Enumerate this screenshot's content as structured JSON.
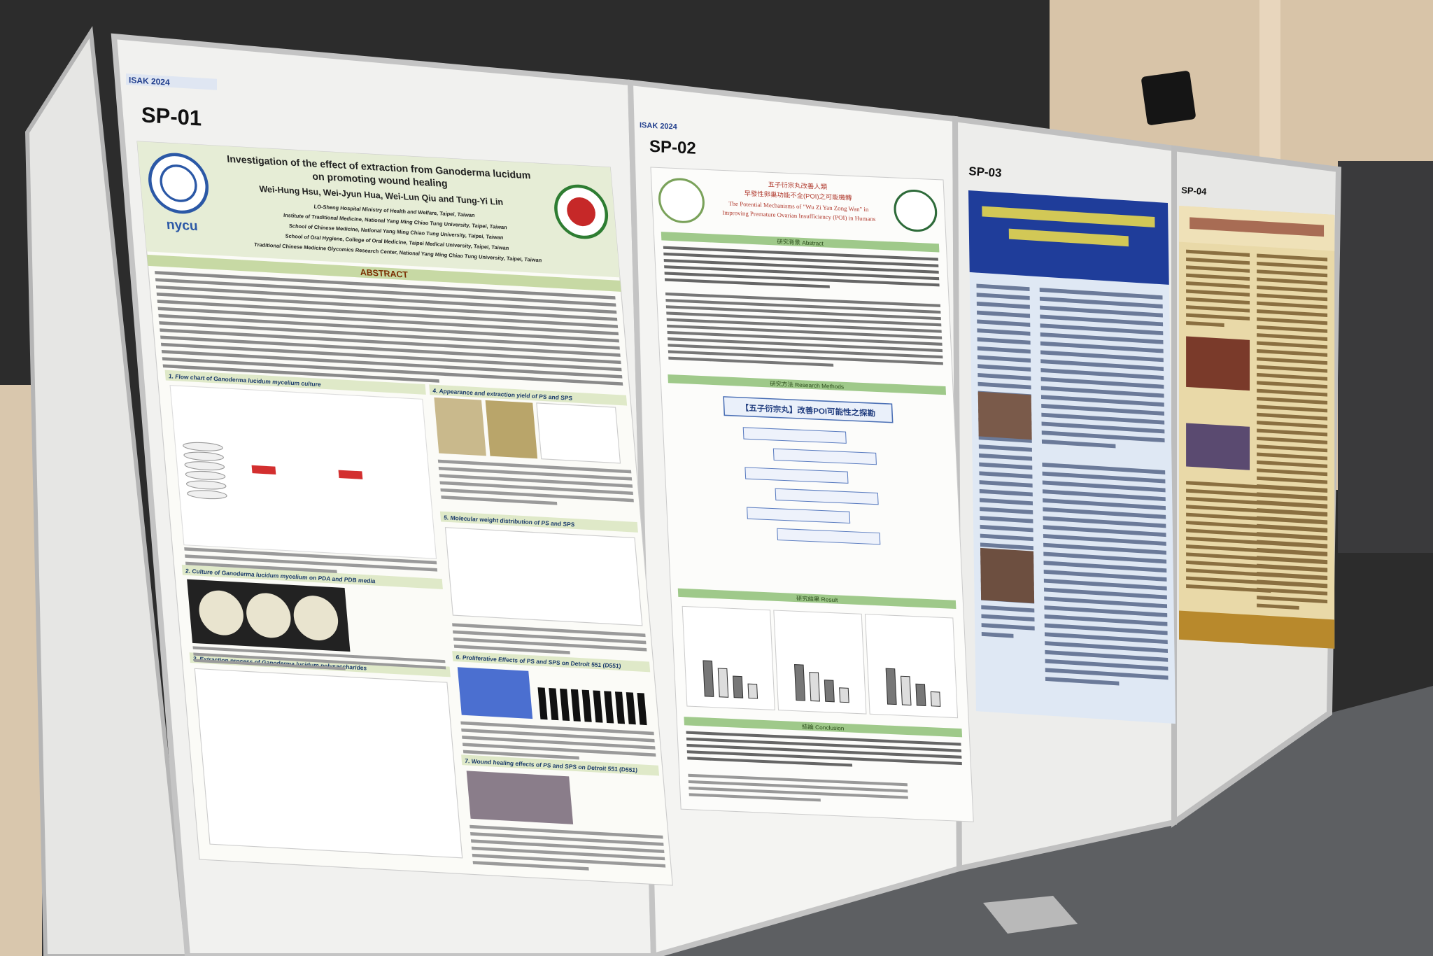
{
  "booths": [
    {
      "label": "SP-01",
      "header": "ISAK 2024",
      "poster": {
        "logo": "nycu",
        "title_lines": [
          "Investigation of the effect of extraction from Ganoderma lucidum",
          "on promoting wound healing"
        ],
        "authors": "Wei-Hung Hsu, Wei-Jyun Hua, Wei-Lun Qiu and Tung-Yi Lin",
        "affiliations": [
          "LO-Sheng Hospital Ministry of Health and Welfare, Taipei, Taiwan",
          "Institute of Traditional Medicine, National Yang Ming Chiao Tung University, Taipei, Taiwan",
          "School of Chinese Medicine, National Yang Ming Chiao Tung University, Taipei, Taiwan",
          "School of Oral Hygiene, College of Oral Medicine, Taipei Medical University, Taipei, Taiwan",
          "Traditional Chinese Medicine Glycomics Research Center, National Yang Ming Chiao Tung University, Taipei, Taiwan"
        ],
        "abstract_heading": "ABSTRACT",
        "sections": [
          "1. Flow chart of Ganoderma lucidum mycelium culture",
          "2. Culture of Ganoderma lucidum mycelium on PDA and PDB media",
          "3. Extraction process of Ganoderma lucidum polysaccharides",
          "4. Appearance and extraction yield of PS and SPS",
          "5. Molecular weight distribution of PS and SPS",
          "6. Proliferative Effects of PS and SPS on Detroit 551 (D551)",
          "7. Wound healing effects of PS and SPS on Detroit 551 (D551)"
        ]
      }
    },
    {
      "label": "SP-02",
      "header": "ISAK 2024",
      "poster": {
        "title_lines": [
          "五子衍宗丸改善人類",
          "早發性卵巢功能不全(POI)之可能機轉",
          "The Potential Mechanisms of \"Wu Zi Yan Zong Wan\" in",
          "Improving Premature Ovarian Insufficiency (POI) in Humans"
        ],
        "sections": [
          "研究背景 Abstract",
          "研究方法 Research Methods",
          "研究結果 Result",
          "結論 Conclusion"
        ],
        "method_box": "【五子衍宗丸】改善POI可能性之探勘"
      }
    },
    {
      "label": "SP-03"
    },
    {
      "label": "SP-04"
    }
  ]
}
